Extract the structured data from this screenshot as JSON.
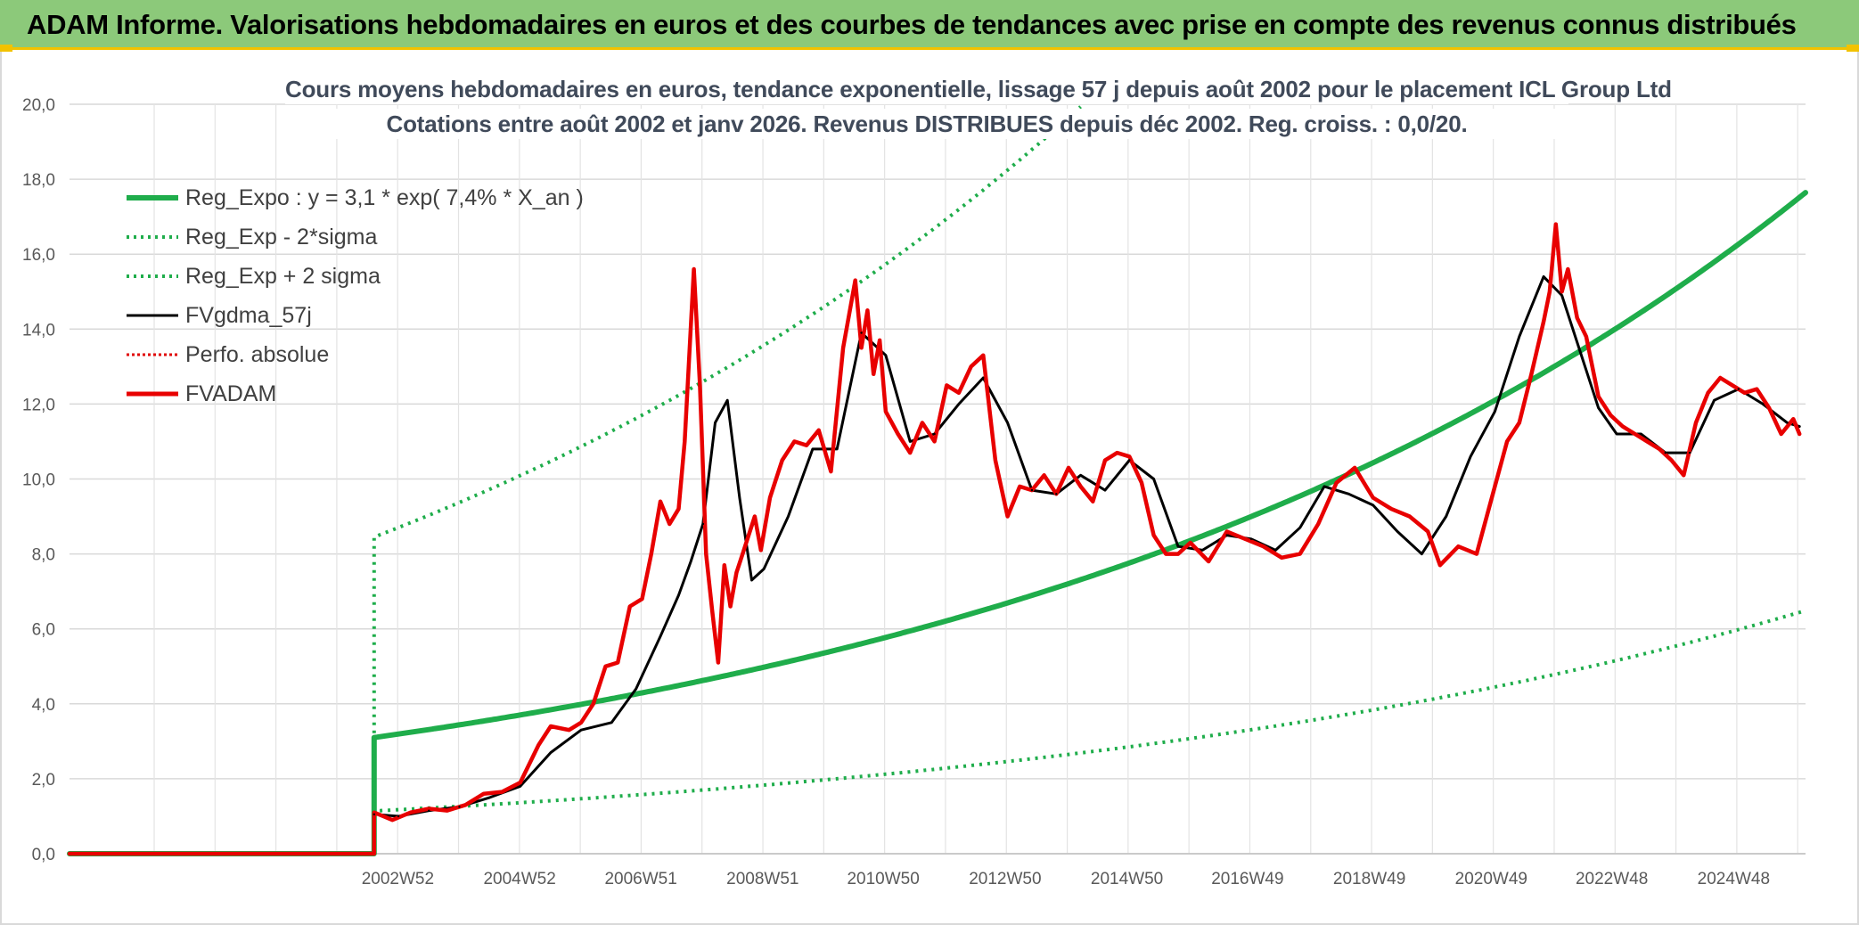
{
  "banner": {
    "title": "ADAM Informe. Valorisations hebdomadaires en euros et des courbes de tendances avec prise en compte des revenus connus distribués"
  },
  "chart_data": {
    "type": "line",
    "title": "Cours moyens hebdomadaires en euros, tendance exponentielle, lissage 57 j depuis août 2002 pour le placement ICL Group Ltd",
    "subtitle": "Cotations entre août 2002 et janv 2026. Revenus DISTRIBUES depuis déc 2002. Reg. croiss. : 0,0/20.",
    "xlabel": "",
    "ylabel": "",
    "ylim": [
      0,
      20
    ],
    "xlim": [
      1997.6,
      2026.1
    ],
    "y_ticks": [
      "0,0",
      "2,0",
      "4,0",
      "6,0",
      "8,0",
      "10,0",
      "12,0",
      "14,0",
      "16,0",
      "18,0",
      "20,0"
    ],
    "x_ticks": [
      {
        "label": "2002W52",
        "x": 2002.99
      },
      {
        "label": "2004W52",
        "x": 2004.99
      },
      {
        "label": "2006W51",
        "x": 2006.98
      },
      {
        "label": "2008W51",
        "x": 2008.98
      },
      {
        "label": "2010W50",
        "x": 2010.96
      },
      {
        "label": "2012W50",
        "x": 2012.96
      },
      {
        "label": "2014W50",
        "x": 2014.96
      },
      {
        "label": "2016W49",
        "x": 2016.94
      },
      {
        "label": "2018W49",
        "x": 2018.94
      },
      {
        "label": "2020W49",
        "x": 2020.94
      },
      {
        "label": "2022W48",
        "x": 2022.92
      },
      {
        "label": "2024W48",
        "x": 2024.92
      }
    ],
    "grid": true,
    "legend_position": "top-left",
    "start_year": 2002.6,
    "series": [
      {
        "name": "Reg_Expo : y = 3,1 * exp( 7,4% *  X_an )",
        "color": "#1fad4b",
        "style": "solid-thick",
        "kind": "expo",
        "a": 3.1,
        "rate": 0.074,
        "x0": 2002.6,
        "before_start": 0
      },
      {
        "name": "Reg_Exp - 2*sigma",
        "color": "#1fad4b",
        "style": "dotted",
        "kind": "expo",
        "a": 1.14,
        "rate": 0.074,
        "x0": 2002.6,
        "before_start": 0
      },
      {
        "name": "Reg_Exp + 2 sigma",
        "color": "#1fad4b",
        "style": "dotted",
        "kind": "expo",
        "a": 8.45,
        "rate": 0.074,
        "x0": 2002.6,
        "before_start": 0,
        "cap": 20
      },
      {
        "name": "FVgdma_57j",
        "color": "#000000",
        "style": "solid",
        "x": [
          2002.6,
          2003.0,
          2003.5,
          2004.0,
          2004.5,
          2005.0,
          2005.5,
          2006.0,
          2006.5,
          2006.9,
          2007.3,
          2007.6,
          2007.8,
          2008.0,
          2008.2,
          2008.4,
          2008.6,
          2008.8,
          2009.0,
          2009.4,
          2009.8,
          2010.2,
          2010.6,
          2011.0,
          2011.4,
          2011.8,
          2012.2,
          2012.6,
          2013.0,
          2013.4,
          2013.8,
          2014.2,
          2014.6,
          2015.0,
          2015.4,
          2015.8,
          2016.2,
          2016.6,
          2017.0,
          2017.4,
          2017.8,
          2018.2,
          2018.6,
          2019.0,
          2019.4,
          2019.8,
          2020.2,
          2020.6,
          2021.0,
          2021.4,
          2021.8,
          2022.1,
          2022.4,
          2022.7,
          2023.0,
          2023.4,
          2023.8,
          2024.2,
          2024.6,
          2025.0,
          2025.4,
          2025.8,
          2026.0
        ],
        "values": [
          1.05,
          1.0,
          1.15,
          1.25,
          1.5,
          1.8,
          2.7,
          3.3,
          3.5,
          4.4,
          5.8,
          6.9,
          7.8,
          8.8,
          11.5,
          12.1,
          9.5,
          7.3,
          7.6,
          9.0,
          10.8,
          10.8,
          13.9,
          13.3,
          11.0,
          11.2,
          12.0,
          12.7,
          11.5,
          9.7,
          9.6,
          10.1,
          9.7,
          10.5,
          10.0,
          8.2,
          8.1,
          8.5,
          8.4,
          8.1,
          8.7,
          9.8,
          9.6,
          9.3,
          8.6,
          8.0,
          9.0,
          10.6,
          11.8,
          13.8,
          15.4,
          14.9,
          13.4,
          11.9,
          11.2,
          11.2,
          10.7,
          10.7,
          12.1,
          12.4,
          12.0,
          11.5,
          11.4
        ],
        "before_start": 0
      },
      {
        "name": "Perfo. absolue",
        "color": "#e00000",
        "style": "dotted-thin",
        "values": []
      },
      {
        "name": "FVADAM",
        "color": "#e80000",
        "style": "solid-medium",
        "x": [
          2002.6,
          2002.9,
          2003.2,
          2003.5,
          2003.8,
          2004.1,
          2004.4,
          2004.7,
          2005.0,
          2005.3,
          2005.5,
          2005.8,
          2006.0,
          2006.2,
          2006.4,
          2006.6,
          2006.8,
          2007.0,
          2007.15,
          2007.3,
          2007.45,
          2007.6,
          2007.7,
          2007.85,
          2007.95,
          2008.05,
          2008.15,
          2008.25,
          2008.35,
          2008.45,
          2008.55,
          2008.65,
          2008.75,
          2008.85,
          2008.95,
          2009.1,
          2009.3,
          2009.5,
          2009.7,
          2009.9,
          2010.1,
          2010.3,
          2010.5,
          2010.6,
          2010.7,
          2010.8,
          2010.9,
          2011.0,
          2011.2,
          2011.4,
          2011.6,
          2011.8,
          2012.0,
          2012.2,
          2012.4,
          2012.6,
          2012.8,
          2013.0,
          2013.2,
          2013.4,
          2013.6,
          2013.8,
          2014.0,
          2014.2,
          2014.4,
          2014.6,
          2014.8,
          2015.0,
          2015.2,
          2015.4,
          2015.6,
          2015.8,
          2016.0,
          2016.3,
          2016.6,
          2016.9,
          2017.2,
          2017.5,
          2017.8,
          2018.1,
          2018.4,
          2018.7,
          2019.0,
          2019.3,
          2019.6,
          2019.9,
          2020.1,
          2020.4,
          2020.7,
          2021.0,
          2021.2,
          2021.4,
          2021.6,
          2021.8,
          2021.9,
          2022.0,
          2022.1,
          2022.2,
          2022.35,
          2022.5,
          2022.7,
          2022.9,
          2023.1,
          2023.3,
          2023.5,
          2023.7,
          2023.9,
          2024.1,
          2024.3,
          2024.5,
          2024.7,
          2024.9,
          2025.1,
          2025.3,
          2025.5,
          2025.7,
          2025.9,
          2026.0
        ],
        "values": [
          1.1,
          0.9,
          1.1,
          1.2,
          1.15,
          1.3,
          1.6,
          1.65,
          1.9,
          2.9,
          3.4,
          3.3,
          3.5,
          4.0,
          5.0,
          5.1,
          6.6,
          6.8,
          8.0,
          9.4,
          8.8,
          9.2,
          11.0,
          15.6,
          12.5,
          8.0,
          6.5,
          5.1,
          7.7,
          6.6,
          7.5,
          8.0,
          8.5,
          9.0,
          8.1,
          9.5,
          10.5,
          11.0,
          10.9,
          11.3,
          10.2,
          13.5,
          15.3,
          13.5,
          14.5,
          12.8,
          13.7,
          11.8,
          11.2,
          10.7,
          11.5,
          11.0,
          12.5,
          12.3,
          13.0,
          13.3,
          10.5,
          9.0,
          9.8,
          9.7,
          10.1,
          9.6,
          10.3,
          9.8,
          9.4,
          10.5,
          10.7,
          10.6,
          9.9,
          8.5,
          8.0,
          8.0,
          8.3,
          7.8,
          8.6,
          8.4,
          8.2,
          7.9,
          8.0,
          8.8,
          9.9,
          10.3,
          9.5,
          9.2,
          9.0,
          8.6,
          7.7,
          8.2,
          8.0,
          9.8,
          11.0,
          11.5,
          12.8,
          14.2,
          15.0,
          16.8,
          15.0,
          15.6,
          14.3,
          13.8,
          12.2,
          11.7,
          11.4,
          11.2,
          11.0,
          10.8,
          10.5,
          10.1,
          11.5,
          12.3,
          12.7,
          12.5,
          12.3,
          12.4,
          11.9,
          11.2,
          11.6,
          11.2
        ],
        "before_start": 0
      }
    ]
  }
}
